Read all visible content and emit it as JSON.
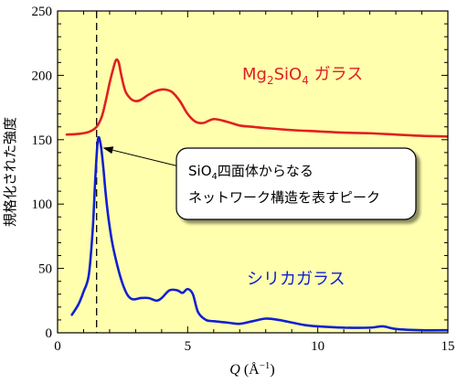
{
  "chart_data": {
    "type": "line",
    "xlabel": "Q (Å⁻¹)",
    "xlabel_parts": {
      "var": "Q",
      "open": " (Å",
      "sup": "−1",
      "close": ")"
    },
    "ylabel": "規格化された強度",
    "xlim": [
      0,
      15
    ],
    "ylim": [
      0,
      250
    ],
    "xticks": [
      0,
      5,
      10,
      15
    ],
    "yticks": [
      0,
      50,
      100,
      150,
      200,
      250
    ],
    "grid": false,
    "background_color": "#FFFFAE",
    "reference_line": {
      "x": 1.5,
      "style": "dashed",
      "color": "#000000"
    },
    "series": [
      {
        "name": "Mg2SiO4 ガラス",
        "label_parts": {
          "a": "Mg",
          "sub1": "2",
          "b": "SiO",
          "sub2": "4",
          "c": " ガラス"
        },
        "color": "#E02020",
        "x": [
          0.35,
          0.8,
          1.2,
          1.5,
          1.7,
          1.85,
          2.0,
          2.15,
          2.25,
          2.35,
          2.45,
          2.6,
          2.8,
          3.0,
          3.2,
          3.5,
          3.8,
          4.1,
          4.4,
          4.7,
          5.0,
          5.3,
          5.6,
          6.0,
          6.5,
          7.0,
          7.5,
          8.0,
          9.0,
          10.0,
          11.0,
          12.0,
          13.0,
          14.0,
          15.0
        ],
        "values": [
          154,
          154.5,
          156,
          160,
          168,
          180,
          194,
          206,
          212,
          210,
          200,
          188,
          182,
          180,
          181,
          185,
          188,
          189,
          187,
          180,
          170,
          164,
          163,
          166,
          164,
          161,
          160,
          159,
          157.5,
          156.5,
          155.5,
          155,
          154,
          153,
          152.5
        ]
      },
      {
        "name": "シリカガラス",
        "color": "#1020D0",
        "x": [
          0.55,
          0.8,
          1.0,
          1.2,
          1.35,
          1.45,
          1.55,
          1.65,
          1.75,
          1.85,
          1.95,
          2.1,
          2.3,
          2.5,
          2.7,
          2.9,
          3.2,
          3.5,
          3.8,
          4.0,
          4.3,
          4.6,
          4.8,
          5.0,
          5.2,
          5.4,
          5.7,
          6.0,
          6.5,
          7.0,
          7.5,
          8.0,
          8.5,
          9.0,
          9.5,
          10.0,
          11.0,
          12.0,
          12.5,
          13.0,
          14.0,
          15.0
        ],
        "values": [
          14,
          22,
          32,
          45,
          80,
          120,
          150,
          147,
          130,
          108,
          90,
          70,
          52,
          38,
          29,
          26,
          27,
          27,
          25,
          27,
          33,
          33,
          31,
          34,
          30,
          16,
          10,
          9,
          8,
          7,
          9,
          11,
          10,
          8,
          6,
          5,
          4,
          4,
          5,
          3,
          2,
          2
        ]
      }
    ],
    "annotation": {
      "line1_parts": {
        "a": "SiO",
        "sub": "4",
        "b": "四面体からなる"
      },
      "line2": "ネットワーク構造を表すピーク",
      "arrow_target": {
        "x": 1.6,
        "y": 148
      }
    }
  }
}
